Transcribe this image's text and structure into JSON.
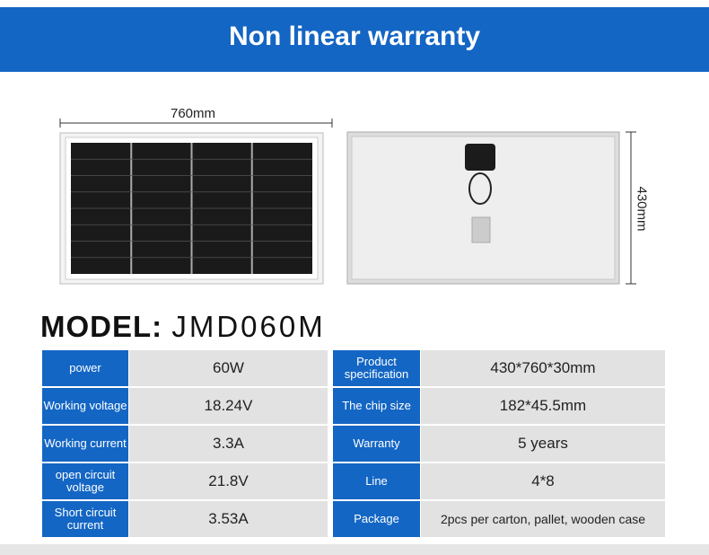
{
  "header": {
    "title": "Non linear warranty"
  },
  "dimensions": {
    "width_label": "760mm",
    "height_label": "430mm"
  },
  "model": {
    "label": "MODEL:",
    "value": "JMD060M"
  },
  "specs": {
    "left": [
      {
        "label": "power",
        "value": "60W"
      },
      {
        "label": "Working voltage",
        "value": "18.24V"
      },
      {
        "label": "Working current",
        "value": "3.3A"
      },
      {
        "label": "open circuit voltage",
        "value": "21.8V"
      },
      {
        "label": "Short circuit current",
        "value": "3.53A"
      }
    ],
    "right": [
      {
        "label": "Product specification",
        "value": "430*760*30mm"
      },
      {
        "label": "The chip size",
        "value": "182*45.5mm"
      },
      {
        "label": "Warranty",
        "value": "5 years"
      },
      {
        "label": "Line",
        "value": "4*8"
      },
      {
        "label": "Package",
        "value": "2pcs per carton, pallet, wooden case"
      }
    ]
  },
  "colors": {
    "accent": "#1466c4",
    "cell_bg": "#e2e2e2"
  }
}
